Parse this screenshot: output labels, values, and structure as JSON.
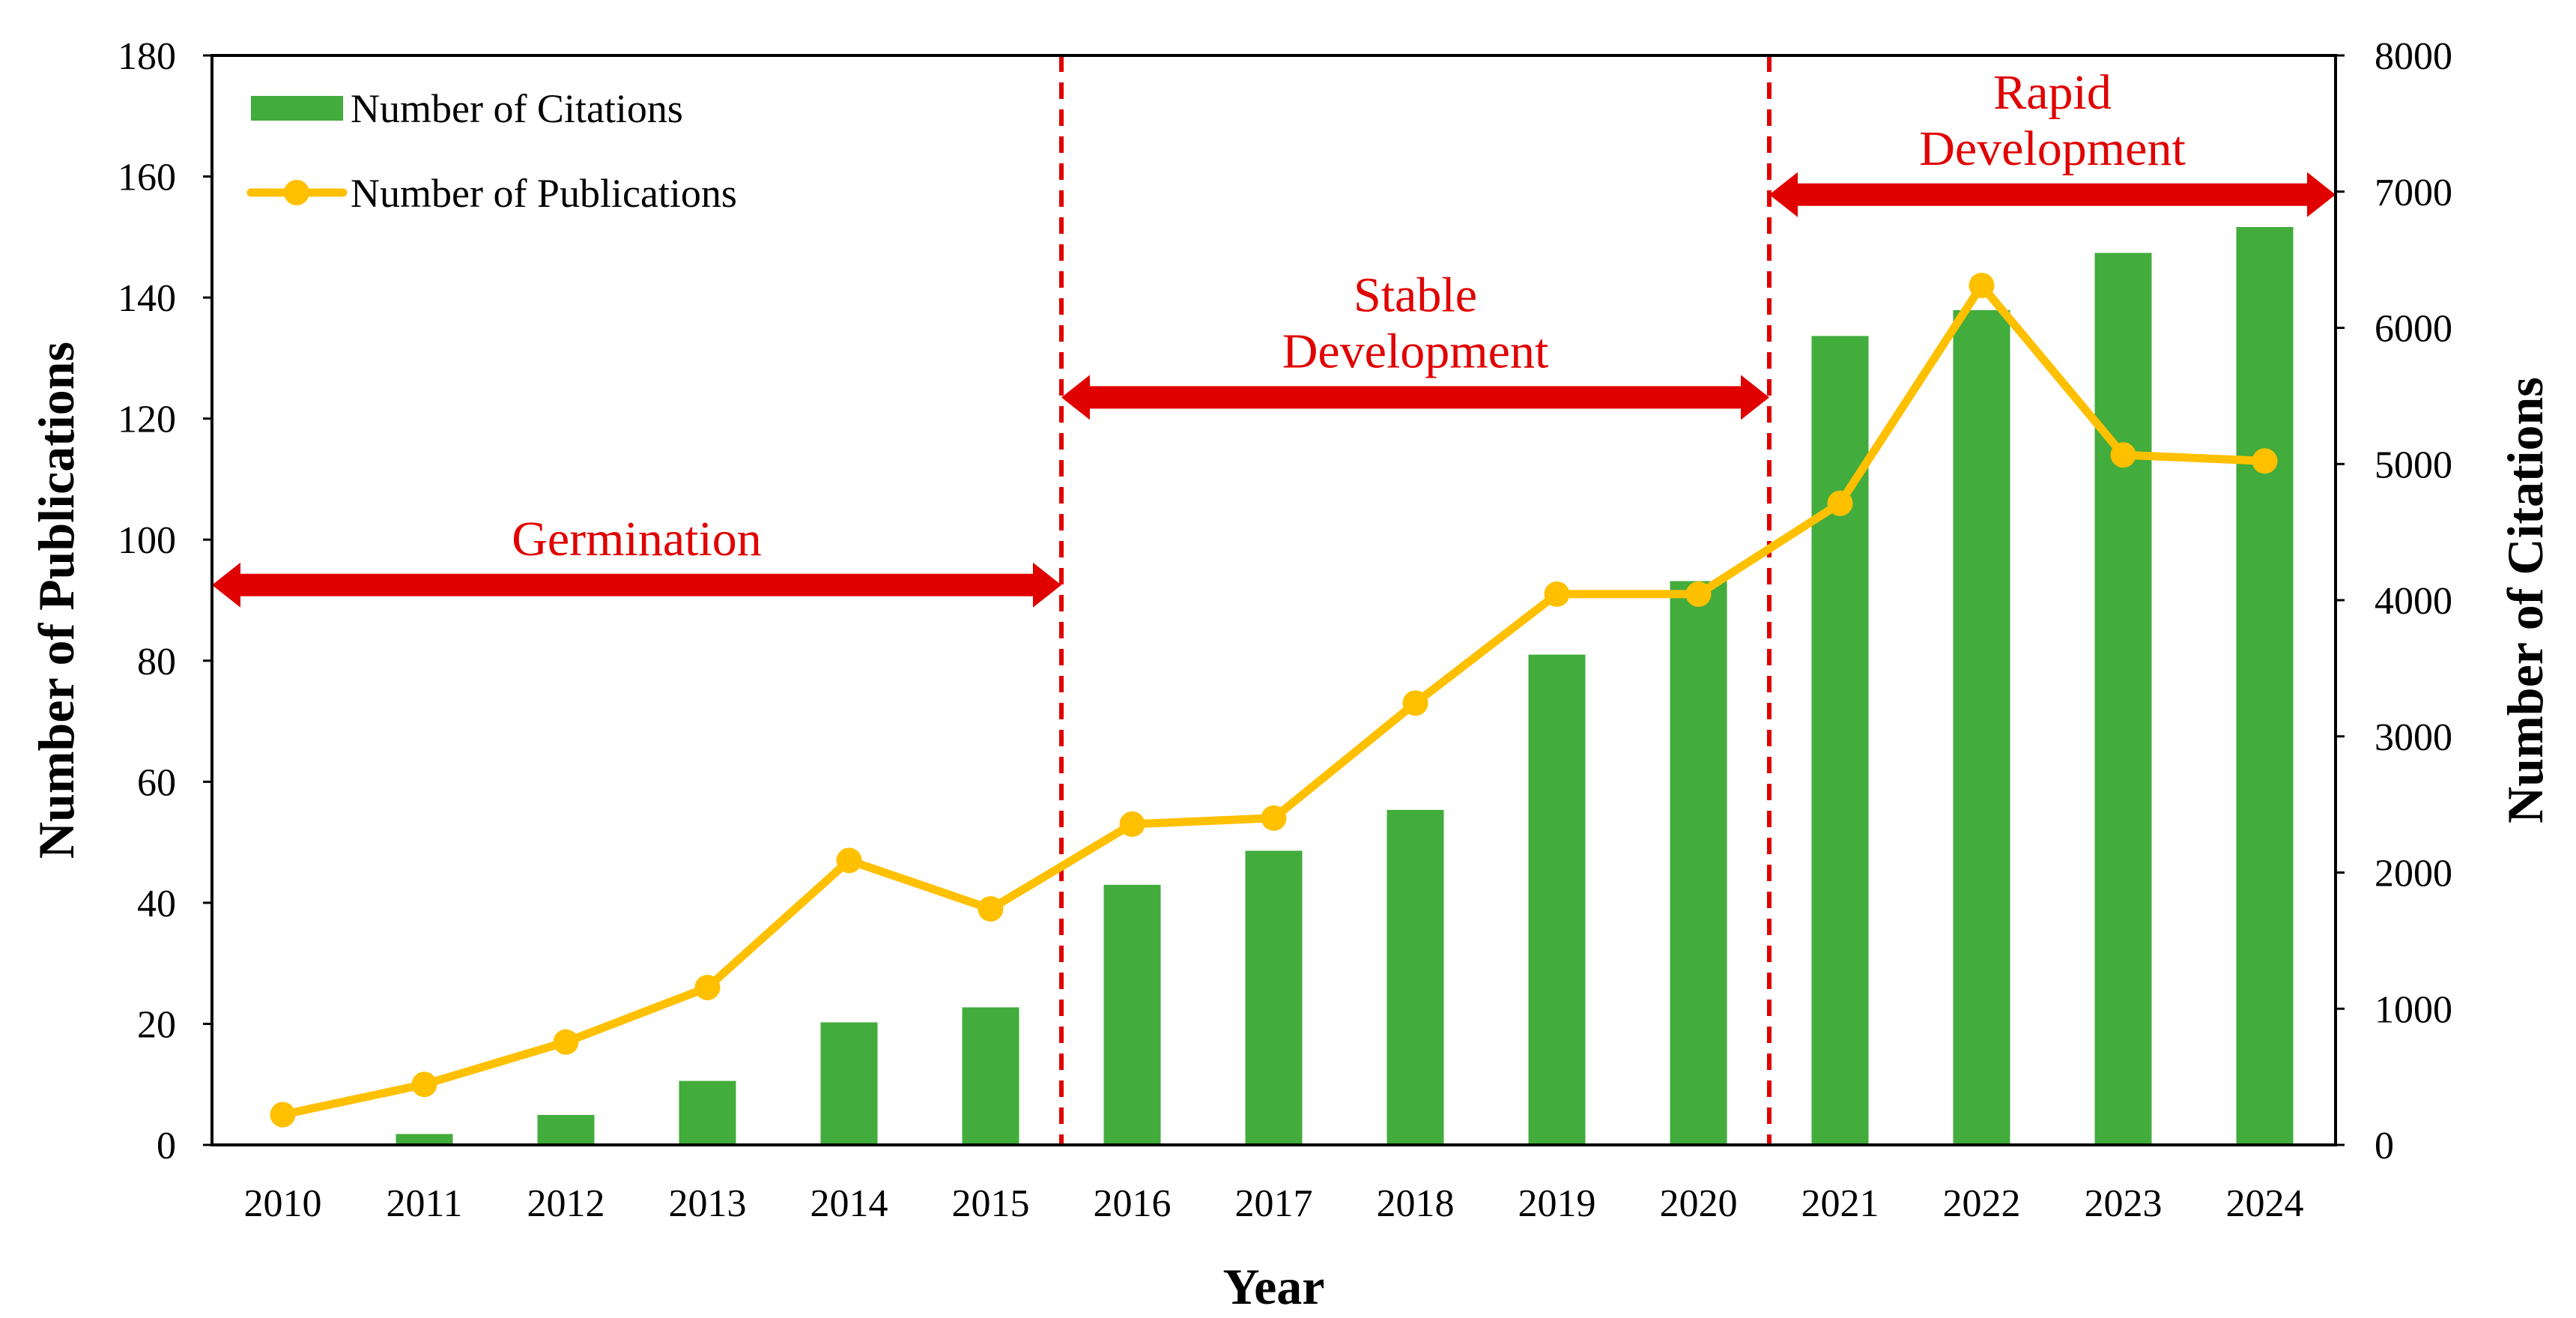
{
  "colors": {
    "citations_bar": "#42AC3C",
    "publications_line": "#FFC000",
    "phase_arrow": "#E00000",
    "phase_divider": "#E00000",
    "phase_label": "#E00000",
    "axis": "#000000"
  },
  "chart_data": {
    "type": "bar+line",
    "xlabel": "Year",
    "ylabel_left": "Number of Publications",
    "ylabel_right": "Number of Citations",
    "ylim_left": [
      0,
      180
    ],
    "yticks_left": [
      0,
      20,
      40,
      60,
      80,
      100,
      120,
      140,
      160,
      180
    ],
    "ylim_right": [
      0,
      8000
    ],
    "yticks_right": [
      0,
      1000,
      2000,
      3000,
      4000,
      5000,
      6000,
      7000,
      8000
    ],
    "categories": [
      "2010",
      "2011",
      "2012",
      "2013",
      "2014",
      "2015",
      "2016",
      "2017",
      "2018",
      "2019",
      "2020",
      "2021",
      "2022",
      "2023",
      "2024"
    ],
    "series": [
      {
        "name": "Number of Citations",
        "type": "bar",
        "axis": "right",
        "values": [
          0,
          80,
          220,
          470,
          900,
          1010,
          1910,
          2160,
          2460,
          3600,
          4140,
          5940,
          6130,
          6550,
          6740
        ]
      },
      {
        "name": "Number of Publications",
        "type": "line",
        "axis": "left",
        "values": [
          5,
          10,
          17,
          26,
          47,
          39,
          53,
          54,
          73,
          91,
          91,
          106,
          142,
          114,
          113
        ]
      }
    ],
    "legend": {
      "position": "top-left",
      "entries": [
        "Number of Citations",
        "Number of Publications"
      ]
    },
    "phases": [
      {
        "label_lines": [
          "Germination"
        ],
        "from_boundary": 0,
        "to_boundary": 6,
        "arrow_level": 92.5
      },
      {
        "label_lines": [
          "Stable",
          "Development"
        ],
        "from_boundary": 6,
        "to_boundary": 11,
        "arrow_level": 123.5
      },
      {
        "label_lines": [
          "Rapid",
          "Development"
        ],
        "from_boundary": 11,
        "to_boundary": 15,
        "arrow_level": 157
      }
    ],
    "phase_dividers_after": [
      "2015",
      "2020"
    ]
  }
}
